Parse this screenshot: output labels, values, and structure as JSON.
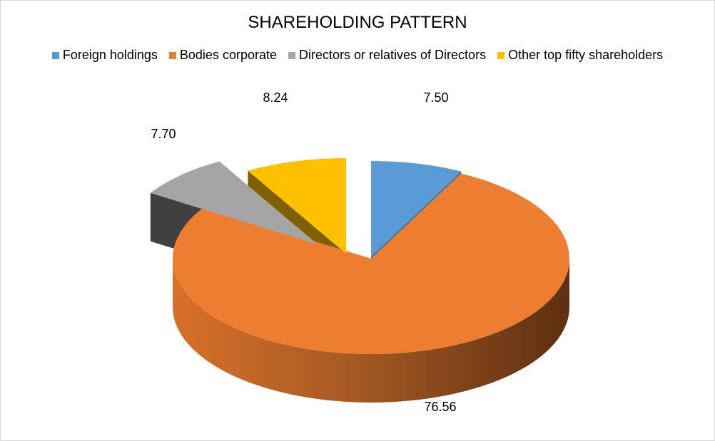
{
  "chart_data": {
    "type": "pie",
    "title": "SHAREHOLDING PATTERN",
    "style": "3d-exploded",
    "legend_position": "top",
    "categories": [
      "Foreign holdings",
      "Bodies corporate",
      "Directors or relatives of Directors",
      "Other top fifty shareholders"
    ],
    "values": [
      7.5,
      76.56,
      7.7,
      8.24
    ],
    "value_labels": [
      "7.50",
      "76.56",
      "7.70",
      "8.24"
    ],
    "colors": [
      "#5b9bd5",
      "#ed7d31",
      "#a5a5a5",
      "#ffc000"
    ]
  }
}
